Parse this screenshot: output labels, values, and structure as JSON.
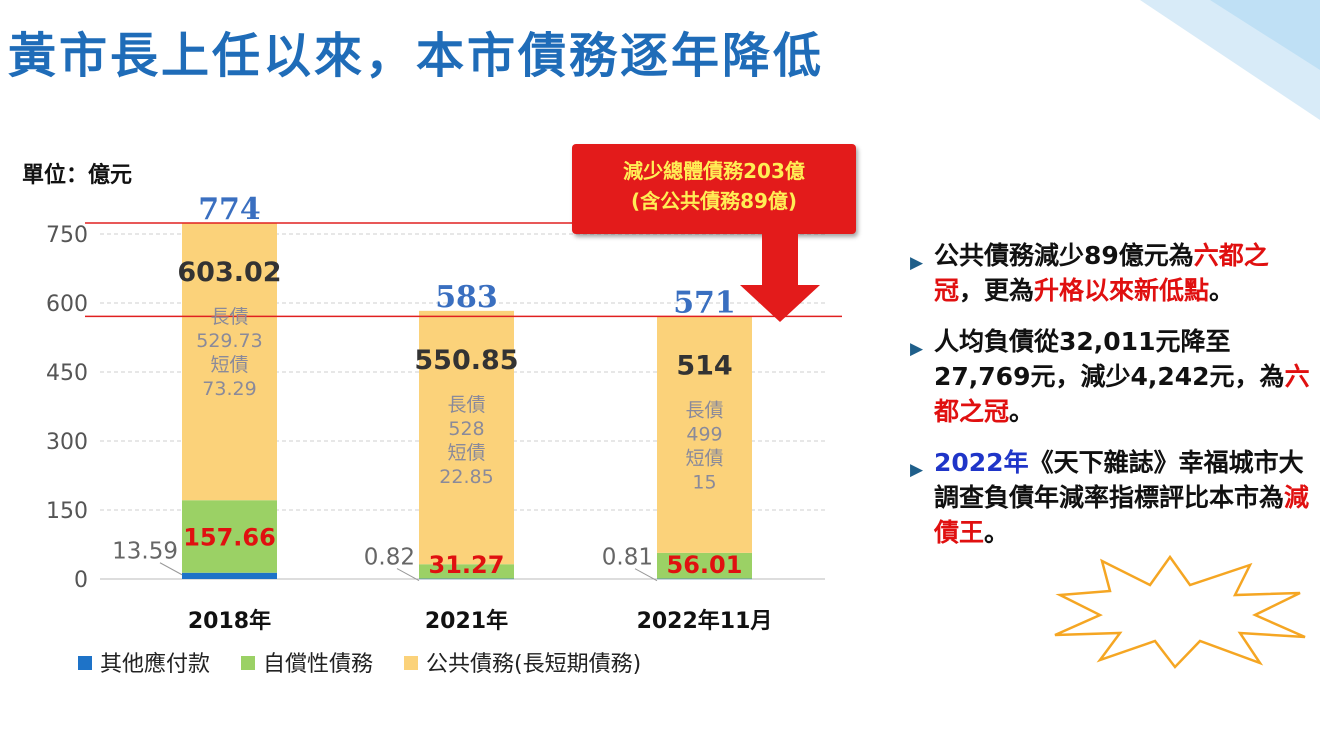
{
  "title": "黃市長上任以來，本市債務逐年降低",
  "colors": {
    "title": "#1f6cb8",
    "other": "#1e73c8",
    "self": "#9bd165",
    "public": "#fbd27a",
    "accent": "#e31b1b",
    "total_label": "#3a6fc0"
  },
  "chart_data": {
    "type": "bar",
    "stacked": true,
    "unit_label": "單位：億元",
    "categories": [
      "2018年",
      "2021年",
      "2022年11月"
    ],
    "ylim": [
      0,
      800
    ],
    "yticks": [
      0,
      150,
      300,
      450,
      600,
      750
    ],
    "ytick_labels": [
      "0",
      "150",
      "300",
      "450",
      "600",
      "750"
    ],
    "grid": true,
    "legend_position": "bottom",
    "series": [
      {
        "name": "其他應付款",
        "values": [
          13.59,
          0.82,
          0.81
        ],
        "labels": [
          "13.59",
          "0.82",
          "0.81"
        ]
      },
      {
        "name": "自償性債務",
        "values": [
          157.66,
          31.27,
          56.01
        ],
        "labels": [
          "157.66",
          "31.27",
          "56.01"
        ]
      },
      {
        "name": "公共債務(長短期債務)",
        "values": [
          603.02,
          550.85,
          514
        ],
        "labels": [
          "603.02",
          "550.85",
          "514"
        ]
      }
    ],
    "totals": [
      774,
      583,
      571
    ],
    "total_labels": [
      "774",
      "583",
      "571"
    ],
    "breakdown": [
      {
        "long_label": "長債",
        "long": "529.73",
        "short_label": "短債",
        "short": "73.29"
      },
      {
        "long_label": "長債",
        "long": "528",
        "short_label": "短債",
        "short": "22.85"
      },
      {
        "long_label": "長債",
        "long": "499",
        "short_label": "短債",
        "short": "15"
      }
    ],
    "reference_lines": [
      774,
      571
    ]
  },
  "callout": {
    "line1": "減少總體債務203億",
    "line2": "(含公共債務89億)"
  },
  "bullets": {
    "b1": {
      "t1": "公共債務減少89億元為",
      "r1": "六都之冠",
      "t2": "，更為",
      "r2": "升格以來新低點",
      "t3": "。"
    },
    "b2": {
      "t1": "人均負債從32,011元降至27,769元，減少4,242元，為",
      "r1": "六都之冠",
      "t2": "。"
    },
    "b3": {
      "blue": "2022年",
      "t1": "《天下雜誌》幸福城市大調查負債年減率指標評比本市為",
      "r1": "減債王",
      "t2": "。"
    }
  }
}
